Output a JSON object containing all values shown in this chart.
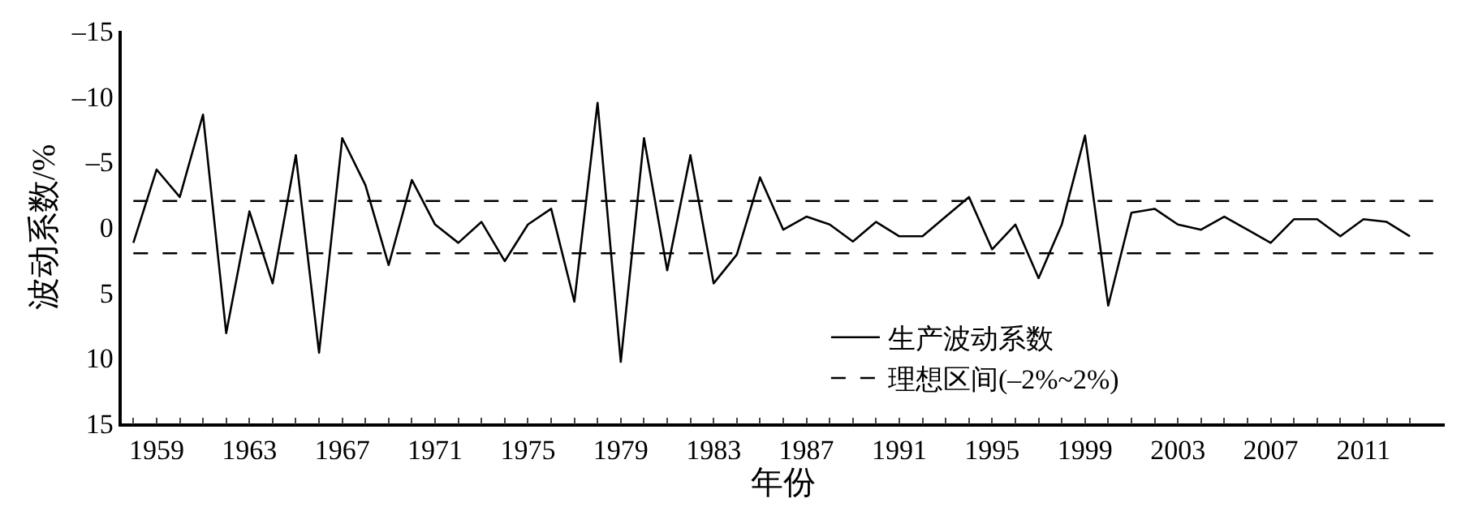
{
  "chart_data": {
    "type": "line",
    "xlabel": "年份",
    "ylabel": "波动系数/%",
    "x": [
      1958,
      1959,
      1960,
      1961,
      1962,
      1963,
      1964,
      1965,
      1966,
      1967,
      1968,
      1969,
      1970,
      1971,
      1972,
      1973,
      1974,
      1975,
      1976,
      1977,
      1978,
      1979,
      1980,
      1981,
      1982,
      1983,
      1984,
      1985,
      1986,
      1987,
      1988,
      1989,
      1990,
      1991,
      1992,
      1993,
      1994,
      1995,
      1996,
      1997,
      1998,
      1999,
      2000,
      2001,
      2002,
      2003,
      2004,
      2005,
      2006,
      2007,
      2008,
      2009,
      2010,
      2011,
      2012,
      2013
    ],
    "series": [
      {
        "name": "生产波动系数",
        "color": "#000000",
        "values": [
          1.2,
          -4.4,
          -2.3,
          -8.6,
          8.1,
          -1.2,
          4.3,
          -5.5,
          9.6,
          -6.8,
          -3.2,
          2.9,
          -3.6,
          -0.2,
          1.2,
          -0.4,
          2.6,
          -0.2,
          -1.4,
          5.7,
          -9.5,
          10.3,
          -6.8,
          3.3,
          -5.5,
          4.3,
          2.1,
          -3.8,
          0.2,
          -0.8,
          -0.2,
          1.1,
          -0.4,
          0.7,
          0.7,
          -0.8,
          -2.3,
          1.7,
          -0.2,
          3.9,
          -0.2,
          -7.0,
          6.0,
          -1.1,
          -1.4,
          -0.2,
          0.2,
          -0.8,
          0.2,
          1.2,
          -0.6,
          -0.6,
          0.7,
          -0.6,
          -0.4,
          0.7
        ]
      }
    ],
    "ref_lines": [
      {
        "axis": "y",
        "value": -2,
        "label": "理想区间(–2%~2%)",
        "color": "#000000",
        "line_style": "dashed"
      },
      {
        "axis": "y",
        "value": 2,
        "color": "#000000",
        "line_style": "dashed"
      }
    ],
    "xlim": [
      1957.5,
      2014.5
    ],
    "xticks": [
      {
        "value": 1958,
        "label": null
      },
      1959,
      {
        "value": 1960,
        "label": null
      },
      {
        "value": 1961,
        "label": null
      },
      {
        "value": 1962,
        "label": null
      },
      1963,
      {
        "value": 1964,
        "label": null
      },
      {
        "value": 1965,
        "label": null
      },
      {
        "value": 1966,
        "label": null
      },
      1967,
      {
        "value": 1968,
        "label": null
      },
      {
        "value": 1969,
        "label": null
      },
      {
        "value": 1970,
        "label": null
      },
      1971,
      {
        "value": 1972,
        "label": null
      },
      {
        "value": 1973,
        "label": null
      },
      {
        "value": 1974,
        "label": null
      },
      1975,
      {
        "value": 1976,
        "label": null
      },
      {
        "value": 1977,
        "label": null
      },
      {
        "value": 1978,
        "label": null
      },
      1979,
      {
        "value": 1980,
        "label": null
      },
      {
        "value": 1981,
        "label": null
      },
      {
        "value": 1982,
        "label": null
      },
      1983,
      {
        "value": 1984,
        "label": null
      },
      {
        "value": 1985,
        "label": null
      },
      {
        "value": 1986,
        "label": null
      },
      1987,
      {
        "value": 1988,
        "label": null
      },
      {
        "value": 1989,
        "label": null
      },
      {
        "value": 1990,
        "label": null
      },
      1991,
      {
        "value": 1992,
        "label": null
      },
      {
        "value": 1993,
        "label": null
      },
      {
        "value": 1994,
        "label": null
      },
      1995,
      {
        "value": 1996,
        "label": null
      },
      {
        "value": 1997,
        "label": null
      },
      {
        "value": 1998,
        "label": null
      },
      1999,
      {
        "value": 2000,
        "label": null
      },
      {
        "value": 2001,
        "label": null
      },
      {
        "value": 2002,
        "label": null
      },
      2003,
      {
        "value": 2004,
        "label": null
      },
      {
        "value": 2005,
        "label": null
      },
      {
        "value": 2006,
        "label": null
      },
      2007,
      {
        "value": 2008,
        "label": null
      },
      {
        "value": 2009,
        "label": null
      },
      {
        "value": 2010,
        "label": null
      },
      2011,
      {
        "value": 2012,
        "label": null
      },
      {
        "value": 2013,
        "label": null
      }
    ],
    "ylim": [
      15,
      -15
    ],
    "yticks": [
      {
        "value": -15,
        "label": "–15"
      },
      {
        "value": -10,
        "label": "–10"
      },
      {
        "value": -5,
        "label": "–5"
      },
      0,
      5,
      10,
      15
    ],
    "legend": "bottom right",
    "marker": "none",
    "line_style": "solid"
  }
}
